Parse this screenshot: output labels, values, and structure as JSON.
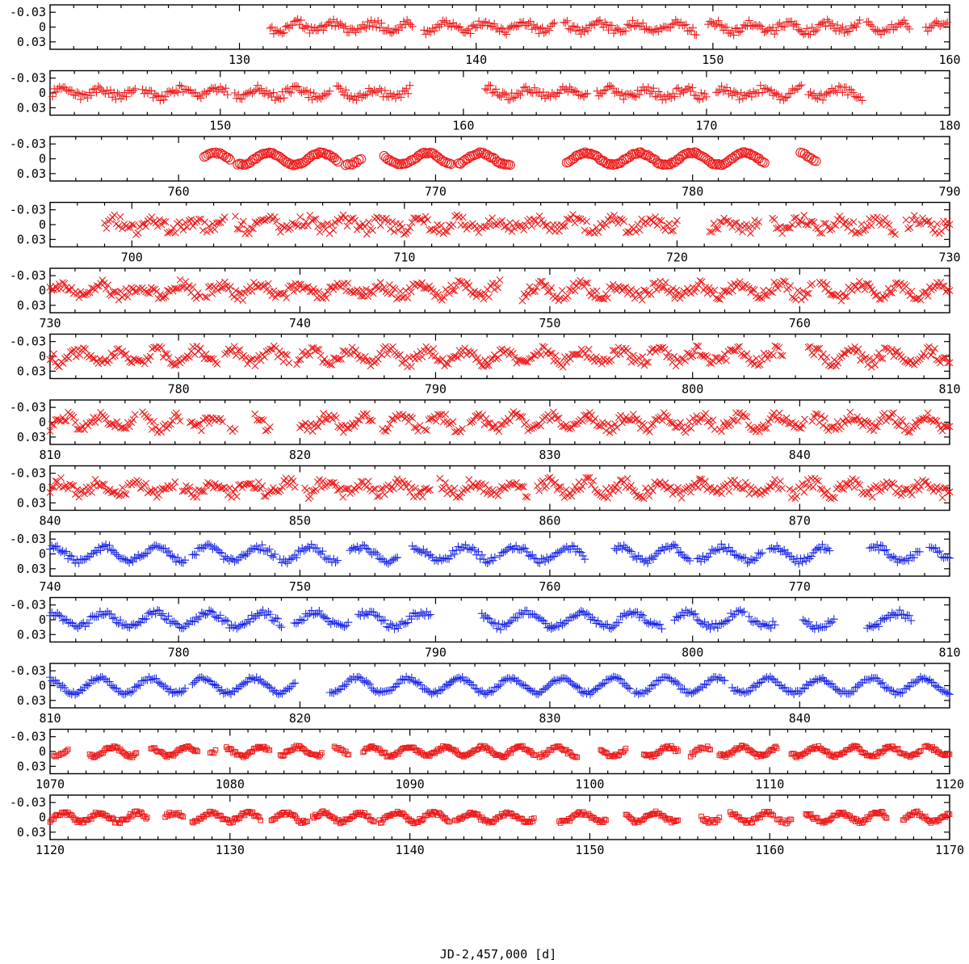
{
  "chart_data": {
    "type": "scatter",
    "xlabel": "JD-2,457,000 [d]",
    "ylabel": "",
    "ylim": [
      0.045,
      -0.045
    ],
    "yticks": [
      -0.03,
      0,
      0.03
    ],
    "ytick_labels": [
      "-0.03",
      "0",
      "0.03"
    ],
    "panels": [
      {
        "xlim": [
          122,
          160
        ],
        "xticks": [
          130,
          140,
          150,
          160
        ],
        "marker": "plus",
        "color": "#ee1c1c",
        "amp": 0.009,
        "period": 1.6,
        "noise": 0.008,
        "segments": [
          [
            131.3,
            137.3
          ],
          [
            137.8,
            143.3
          ],
          [
            143.7,
            149.3
          ],
          [
            149.8,
            156.2
          ],
          [
            156.5,
            158.3
          ],
          [
            159.0,
            159.9
          ]
        ]
      },
      {
        "xlim": [
          143,
          180
        ],
        "xticks": [
          150,
          160,
          170,
          180
        ],
        "marker": "plus",
        "color": "#ee1c1c",
        "amp": 0.008,
        "period": 1.6,
        "noise": 0.008,
        "segments": [
          [
            143.1,
            146.5
          ],
          [
            146.8,
            150.3
          ],
          [
            150.6,
            154.5
          ],
          [
            154.8,
            157.8
          ],
          [
            160.9,
            165.1
          ],
          [
            165.5,
            170.0
          ],
          [
            170.4,
            173.9
          ],
          [
            174.2,
            176.4
          ]
        ]
      },
      {
        "xlim": [
          755,
          790
        ],
        "xticks": [
          760,
          770,
          780,
          790
        ],
        "marker": "circle",
        "color": "#ee1c1c",
        "amp": 0.012,
        "period": 2.06,
        "noise": 0.0018,
        "segments": [
          [
            761.0,
            762.0
          ],
          [
            762.3,
            766.2
          ],
          [
            766.5,
            767.1
          ],
          [
            768.0,
            770.6
          ],
          [
            770.9,
            772.9
          ],
          [
            775.1,
            782.8
          ],
          [
            784.2,
            784.8
          ]
        ]
      },
      {
        "xlim": [
          697,
          730
        ],
        "xticks": [
          700,
          710,
          720,
          730
        ],
        "marker": "x",
        "color": "#ee1c1c",
        "amp": 0.009,
        "period": 1.4,
        "noise": 0.012,
        "segments": [
          [
            699.0,
            703.4
          ],
          [
            703.8,
            712.0
          ],
          [
            712.0,
            720.0
          ],
          [
            721.2,
            723.0
          ],
          [
            723.5,
            728.0
          ],
          [
            728.4,
            730.0
          ]
        ]
      },
      {
        "xlim": [
          730,
          766
        ],
        "xticks": [
          730,
          740,
          750,
          760
        ],
        "marker": "x",
        "color": "#ee1c1c",
        "amp": 0.011,
        "period": 1.6,
        "noise": 0.011,
        "segments": [
          [
            730.0,
            736.0
          ],
          [
            736.2,
            742.5
          ],
          [
            742.5,
            748.0
          ],
          [
            748.9,
            755.0
          ],
          [
            755.0,
            760.5
          ],
          [
            760.8,
            766.0
          ]
        ]
      },
      {
        "xlim": [
          775,
          810
        ],
        "xticks": [
          780,
          790,
          800,
          810
        ],
        "marker": "x",
        "color": "#ee1c1c",
        "amp": 0.012,
        "period": 1.5,
        "noise": 0.01,
        "segments": [
          [
            775.0,
            781.5
          ],
          [
            781.8,
            784.3
          ],
          [
            784.6,
            792.0
          ],
          [
            792.0,
            800.0
          ],
          [
            800.0,
            803.5
          ],
          [
            804.5,
            810.0
          ]
        ]
      },
      {
        "xlim": [
          810,
          846
        ],
        "xticks": [
          810,
          820,
          830,
          840
        ],
        "marker": "x",
        "color": "#ee1c1c",
        "amp": 0.012,
        "period": 1.5,
        "noise": 0.01,
        "segments": [
          [
            810.0,
            813.4
          ],
          [
            813.7,
            815.2
          ],
          [
            815.6,
            816.9
          ],
          [
            817.2,
            817.4
          ],
          [
            818.2,
            818.8
          ],
          [
            820.0,
            822.9
          ],
          [
            823.3,
            824.8
          ],
          [
            825.0,
            826.5
          ],
          [
            826.8,
            831.6
          ],
          [
            831.6,
            836.6
          ],
          [
            836.8,
            840.2
          ],
          [
            840.5,
            846.0
          ]
        ]
      },
      {
        "xlim": [
          840,
          876
        ],
        "xticks": [
          840,
          850,
          860,
          870
        ],
        "marker": "x",
        "color": "#ee1c1c",
        "amp": 0.011,
        "period": 1.5,
        "noise": 0.011,
        "segments": [
          [
            840.0,
            845.0
          ],
          [
            845.3,
            849.8
          ],
          [
            850.2,
            855.2
          ],
          [
            855.6,
            859.1
          ],
          [
            859.5,
            866.0
          ],
          [
            866.0,
            869.3
          ],
          [
            869.6,
            876.0
          ]
        ]
      },
      {
        "xlim": [
          740,
          776
        ],
        "xticks": [
          740,
          750,
          760,
          770
        ],
        "marker": "plus",
        "color": "#1c28e6",
        "amp": 0.014,
        "period": 2.06,
        "noise": 0.006,
        "segments": [
          [
            740.0,
            745.4
          ],
          [
            745.7,
            749.0
          ],
          [
            749.2,
            751.5
          ],
          [
            752.0,
            753.9
          ],
          [
            754.5,
            757.8
          ],
          [
            758.0,
            761.4
          ],
          [
            762.6,
            765.6
          ],
          [
            765.9,
            768.5
          ],
          [
            768.8,
            771.2
          ],
          [
            772.8,
            774.8
          ],
          [
            775.2,
            776.0
          ]
        ]
      },
      {
        "xlim": [
          775,
          810
        ],
        "xticks": [
          780,
          790,
          800,
          810
        ],
        "marker": "plus",
        "color": "#1c28e6",
        "amp": 0.014,
        "period": 2.06,
        "noise": 0.006,
        "segments": [
          [
            775.0,
            784.0
          ],
          [
            784.5,
            786.6
          ],
          [
            787.0,
            789.8
          ],
          [
            791.8,
            794.5
          ],
          [
            794.5,
            798.8
          ],
          [
            799.3,
            802.0
          ],
          [
            802.2,
            803.2
          ],
          [
            804.3,
            805.5
          ],
          [
            806.8,
            808.5
          ]
        ]
      },
      {
        "xlim": [
          810,
          846
        ],
        "xticks": [
          810,
          820,
          830,
          840
        ],
        "marker": "plus",
        "color": "#1c28e6",
        "amp": 0.015,
        "period": 2.06,
        "noise": 0.0035,
        "segments": [
          [
            810.0,
            815.4
          ],
          [
            815.7,
            819.8
          ],
          [
            821.2,
            826.0
          ],
          [
            826.0,
            833.2
          ],
          [
            833.4,
            837.0
          ],
          [
            837.3,
            841.0
          ],
          [
            841.0,
            846.0
          ]
        ]
      },
      {
        "xlim": [
          1070,
          1120
        ],
        "xticks": [
          1070,
          1080,
          1090,
          1100,
          1110,
          1120
        ],
        "marker": "square",
        "color": "#ee1c1c",
        "amp": 0.009,
        "period": 2.06,
        "noise": 0.0035,
        "segments": [
          [
            1070.2,
            1071.0
          ],
          [
            1072.2,
            1074.8
          ],
          [
            1075.6,
            1078.2
          ],
          [
            1078.9,
            1079.2
          ],
          [
            1079.8,
            1082.2
          ],
          [
            1082.8,
            1085.1
          ],
          [
            1085.8,
            1086.6
          ],
          [
            1087.4,
            1092.2
          ],
          [
            1092.2,
            1097.0
          ],
          [
            1097.2,
            1099.3
          ],
          [
            1100.6,
            1102.0
          ],
          [
            1103.0,
            1104.9
          ],
          [
            1105.6,
            1106.7
          ],
          [
            1107.2,
            1110.4
          ],
          [
            1111.2,
            1116.4
          ],
          [
            1116.4,
            1118.4
          ],
          [
            1118.6,
            1120.0
          ]
        ]
      },
      {
        "xlim": [
          1120,
          1170
        ],
        "xticks": [
          1120,
          1130,
          1140,
          1150,
          1160,
          1170
        ],
        "marker": "square",
        "color": "#ee1c1c",
        "amp": 0.009,
        "period": 2.06,
        "noise": 0.004,
        "segments": [
          [
            1120.0,
            1125.4
          ],
          [
            1126.4,
            1127.4
          ],
          [
            1127.9,
            1131.7
          ],
          [
            1132.3,
            1134.3
          ],
          [
            1134.6,
            1138.0
          ],
          [
            1138.3,
            1142.2
          ],
          [
            1142.5,
            1146.9
          ],
          [
            1148.3,
            1150.9
          ],
          [
            1152.0,
            1154.9
          ],
          [
            1156.2,
            1157.2
          ],
          [
            1157.8,
            1160.2
          ],
          [
            1160.4,
            1161.2
          ],
          [
            1162.0,
            1166.5
          ],
          [
            1167.4,
            1170.0
          ]
        ]
      }
    ]
  }
}
